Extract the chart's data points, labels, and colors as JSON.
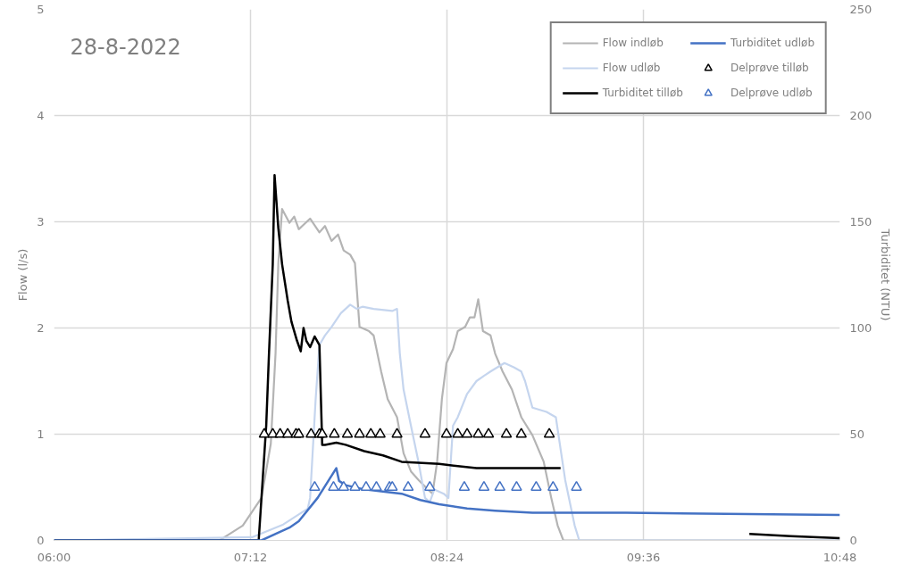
{
  "chart_data": {
    "type": "line",
    "title": "28-8-2022",
    "ylabel": "Flow (l/s)",
    "y2label": "Turbiditet (NTU)",
    "xlim": [
      6,
      10.8
    ],
    "xticks": [
      {
        "value": 6,
        "label": "06:00"
      },
      {
        "value": 7.2,
        "label": "07:12"
      },
      {
        "value": 8.4,
        "label": "08:24"
      },
      {
        "value": 9.6,
        "label": "09:36"
      },
      {
        "value": 10.8,
        "label": "10:48"
      }
    ],
    "ylim": [
      0,
      5
    ],
    "yticks": [
      0,
      1,
      2,
      3,
      4,
      5
    ],
    "y2lim": [
      0,
      250
    ],
    "y2ticks": [
      0,
      50,
      100,
      150,
      200,
      250
    ],
    "grid": true,
    "legend": "top right",
    "line_style": "solid",
    "series": [
      {
        "name": "Flow indløb",
        "color": "#b4b4b4",
        "x": [
          6.0,
          7.01,
          7.153,
          7.267,
          7.324,
          7.353,
          7.37,
          7.393,
          7.438,
          7.467,
          7.495,
          7.564,
          7.621,
          7.655,
          7.695,
          7.735,
          7.769,
          7.809,
          7.838,
          7.866,
          7.924,
          7.952,
          7.998,
          8.038,
          8.095,
          8.135,
          8.18,
          8.226,
          8.283,
          8.312,
          8.34,
          8.369,
          8.397,
          8.437,
          8.466,
          8.511,
          8.54,
          8.568,
          8.591,
          8.62,
          8.666,
          8.694,
          8.74,
          8.797,
          8.854,
          8.922,
          8.991,
          9.037,
          9.076,
          9.111,
          10.8
        ],
        "values": [
          0,
          0,
          0.14,
          0.4,
          0.91,
          1.76,
          2.61,
          3.12,
          2.99,
          3.05,
          2.93,
          3.03,
          2.9,
          2.96,
          2.82,
          2.88,
          2.73,
          2.69,
          2.61,
          2.01,
          1.97,
          1.93,
          1.59,
          1.33,
          1.16,
          0.82,
          0.65,
          0.57,
          0.48,
          0.44,
          0.74,
          1.33,
          1.67,
          1.8,
          1.97,
          2.01,
          2.1,
          2.1,
          2.27,
          1.97,
          1.93,
          1.76,
          1.59,
          1.42,
          1.16,
          0.99,
          0.74,
          0.4,
          0.14,
          0,
          0
        ]
      },
      {
        "name": "Flow udløb",
        "color": "#c5d5ee",
        "x": [
          6.0,
          7.21,
          7.4,
          7.55,
          7.564,
          7.598,
          7.621,
          7.655,
          7.695,
          7.752,
          7.809,
          7.849,
          7.884,
          7.952,
          8.066,
          8.095,
          8.112,
          8.135,
          8.18,
          8.226,
          8.266,
          8.295,
          8.323,
          8.38,
          8.409,
          8.437,
          8.466,
          8.523,
          8.58,
          8.626,
          8.666,
          8.751,
          8.808,
          8.854,
          8.877,
          8.922,
          9.008,
          9.065,
          9.122,
          9.18,
          9.208,
          10.8
        ],
        "values": [
          0,
          0.03,
          0.15,
          0.3,
          0.4,
          1.33,
          1.84,
          1.93,
          2.01,
          2.14,
          2.22,
          2.18,
          2.2,
          2.18,
          2.16,
          2.18,
          1.76,
          1.42,
          1.08,
          0.74,
          0.4,
          0.36,
          0.48,
          0.44,
          0.4,
          1.08,
          1.16,
          1.38,
          1.5,
          1.55,
          1.59,
          1.67,
          1.63,
          1.59,
          1.5,
          1.25,
          1.21,
          1.16,
          0.57,
          0.14,
          0,
          0
        ]
      },
      {
        "name": "Turbiditet tilløb",
        "axis": "y2",
        "color": "#000000",
        "x": [
          6.0,
          7.25,
          7.296,
          7.313,
          7.336,
          7.347,
          7.37,
          7.393,
          7.427,
          7.45,
          7.484,
          7.507,
          7.524,
          7.541,
          7.564,
          7.592,
          7.621,
          7.638,
          7.655,
          7.724,
          7.781,
          7.895,
          8.009,
          8.123,
          8.352,
          8.58,
          8.922,
          9.094,
          9.5,
          10.247,
          10.5,
          10.8
        ],
        "values": [
          0,
          0,
          54,
          88,
          130,
          172,
          147,
          130,
          113,
          103,
          94,
          89,
          100,
          94,
          91,
          96,
          92,
          45,
          45,
          46,
          45,
          42,
          40,
          37,
          36,
          34,
          34,
          34,
          null,
          3,
          2,
          1
        ]
      },
      {
        "name": "Turbiditet udløb",
        "axis": "y2",
        "color": "#4472c4",
        "x": [
          6.0,
          7.267,
          7.381,
          7.438,
          7.495,
          7.61,
          7.724,
          7.741,
          7.781,
          7.895,
          8.009,
          8.123,
          8.237,
          8.352,
          8.523,
          8.694,
          8.922,
          9.493,
          10.8
        ],
        "values": [
          0,
          0,
          4,
          6,
          9,
          20,
          34,
          28,
          26,
          24,
          23,
          22,
          19,
          17,
          15,
          14,
          13,
          13,
          12
        ]
      },
      {
        "name": "Delprøve tilløb",
        "type": "scatter",
        "marker": "triangle",
        "color": "#000000",
        "x": [
          7.284,
          7.336,
          7.381,
          7.427,
          7.478,
          7.495,
          7.57,
          7.621,
          7.638,
          7.712,
          7.792,
          7.866,
          7.935,
          7.992,
          8.095,
          8.266,
          8.397,
          8.466,
          8.523,
          8.591,
          8.654,
          8.763,
          8.854,
          9.025
        ],
        "values": [
          1,
          1,
          1,
          1,
          1,
          1,
          1,
          1,
          1,
          1,
          1,
          1,
          1,
          1,
          1,
          1,
          1,
          1,
          1,
          1,
          1,
          1,
          1,
          1
        ]
      },
      {
        "name": "Delprøve udløb",
        "type": "scatter",
        "marker": "triangle",
        "color": "#4472c4",
        "x": [
          7.592,
          7.707,
          7.769,
          7.838,
          7.906,
          7.969,
          8.049,
          8.066,
          8.163,
          8.295,
          8.506,
          8.626,
          8.723,
          8.825,
          8.945,
          9.048,
          9.191
        ],
        "values": [
          0.5,
          0.5,
          0.5,
          0.5,
          0.5,
          0.5,
          0.5,
          0.5,
          0.5,
          0.5,
          0.5,
          0.5,
          0.5,
          0.5,
          0.5,
          0.5,
          0.5
        ]
      }
    ]
  }
}
